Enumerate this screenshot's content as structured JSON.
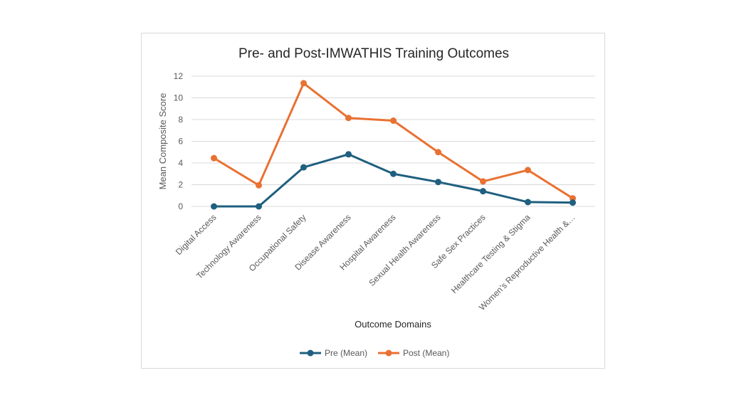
{
  "chart_data": {
    "type": "line",
    "title": "Pre- and Post-IMWATHIS Training Outcomes",
    "xlabel": "Outcome Domains",
    "ylabel": "Mean Composite Score",
    "ylim": [
      0,
      12
    ],
    "yticks": [
      0,
      2,
      4,
      6,
      8,
      10,
      12
    ],
    "grid": true,
    "legend_position": "bottom",
    "categories": [
      "Digital Access",
      "Technology Awareness",
      "Occupational Safety",
      "Disease Awareness",
      "Hospital Awareness",
      "Sexual Health Awareness",
      "Safe Sex Practices",
      "Healthcare Testing & Stigma",
      "Women’s Reproductive Health &…"
    ],
    "series": [
      {
        "name": "Pre (Mean)",
        "color": "#1f5f7f",
        "values": [
          0.0,
          0.0,
          3.6,
          4.8,
          3.0,
          2.25,
          1.4,
          0.4,
          0.35
        ]
      },
      {
        "name": "Post (Mean)",
        "color": "#e97132",
        "values": [
          4.45,
          1.95,
          11.35,
          8.15,
          7.9,
          5.0,
          2.3,
          3.35,
          0.75
        ]
      }
    ]
  }
}
